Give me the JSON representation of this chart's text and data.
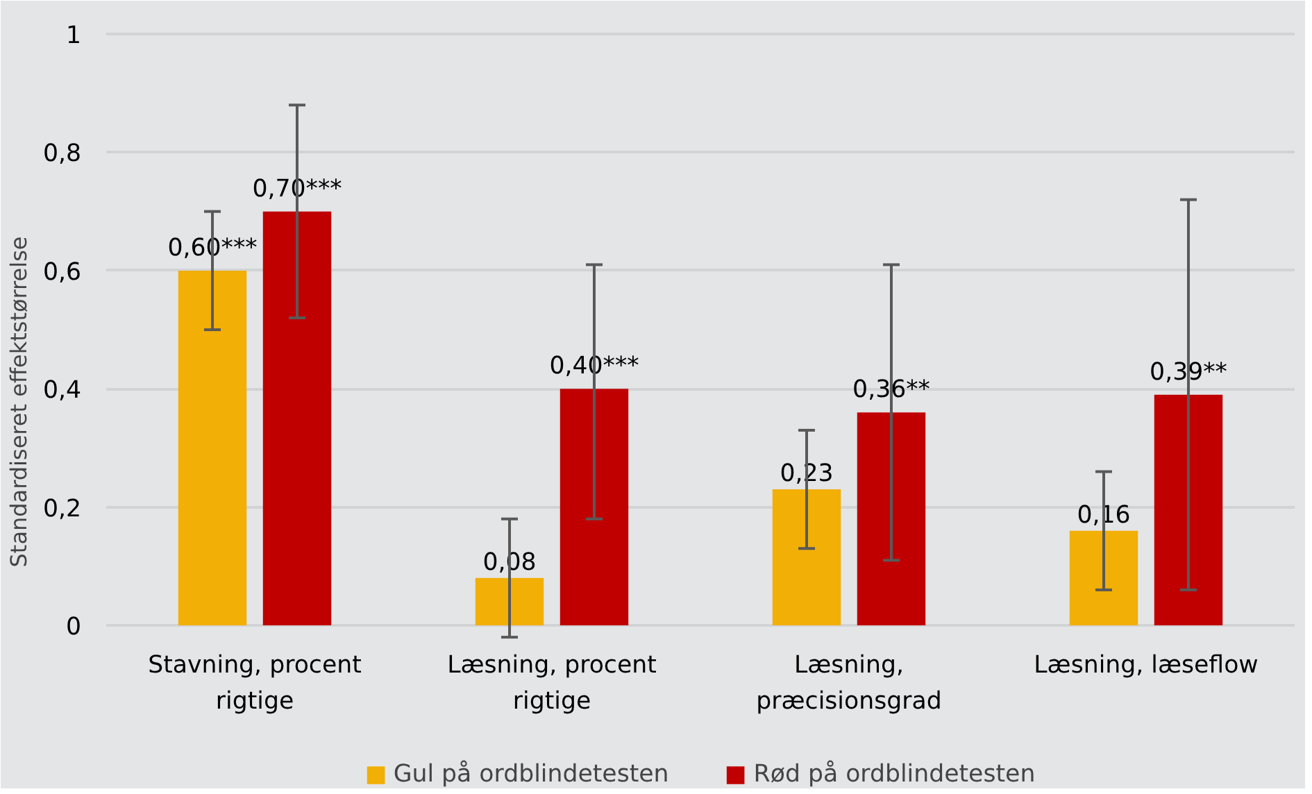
{
  "chart_data": {
    "type": "bar",
    "ylabel": "Standardiseret effektstørrelse",
    "categories": [
      "Stavning, procent rigtige",
      "Læsning, procent rigtige",
      "Læsning, præcisionsgrad",
      "Læsning, læseflow"
    ],
    "series": [
      {
        "name": "Gul på ordblindetesten",
        "color": "#f2af05",
        "values": [
          0.6,
          0.08,
          0.23,
          0.16
        ],
        "errors": [
          [
            0.5,
            0.7
          ],
          [
            -0.02,
            0.18
          ],
          [
            0.13,
            0.33
          ],
          [
            0.06,
            0.26
          ]
        ],
        "value_labels": [
          "0,60***",
          "0,08",
          "0,23",
          "0,16"
        ]
      },
      {
        "name": "Rød på ordblindetesten",
        "color": "#c00000",
        "values": [
          0.7,
          0.4,
          0.36,
          0.39
        ],
        "errors": [
          [
            0.52,
            0.88
          ],
          [
            0.18,
            0.61
          ],
          [
            0.11,
            0.61
          ],
          [
            0.06,
            0.72
          ]
        ],
        "value_labels": [
          "0,70***",
          "0,40***",
          "0,36**",
          "0,39**"
        ]
      }
    ],
    "ylim": [
      0,
      1
    ],
    "yticks": [
      {
        "value": 0,
        "label": "0"
      },
      {
        "value": 0.2,
        "label": "0,2"
      },
      {
        "value": 0.4,
        "label": "0,4"
      },
      {
        "value": 0.6,
        "label": "0,6"
      },
      {
        "value": 0.8,
        "label": "0,8"
      },
      {
        "value": 1,
        "label": "1"
      }
    ],
    "grid": "y",
    "legend": "bottom"
  }
}
